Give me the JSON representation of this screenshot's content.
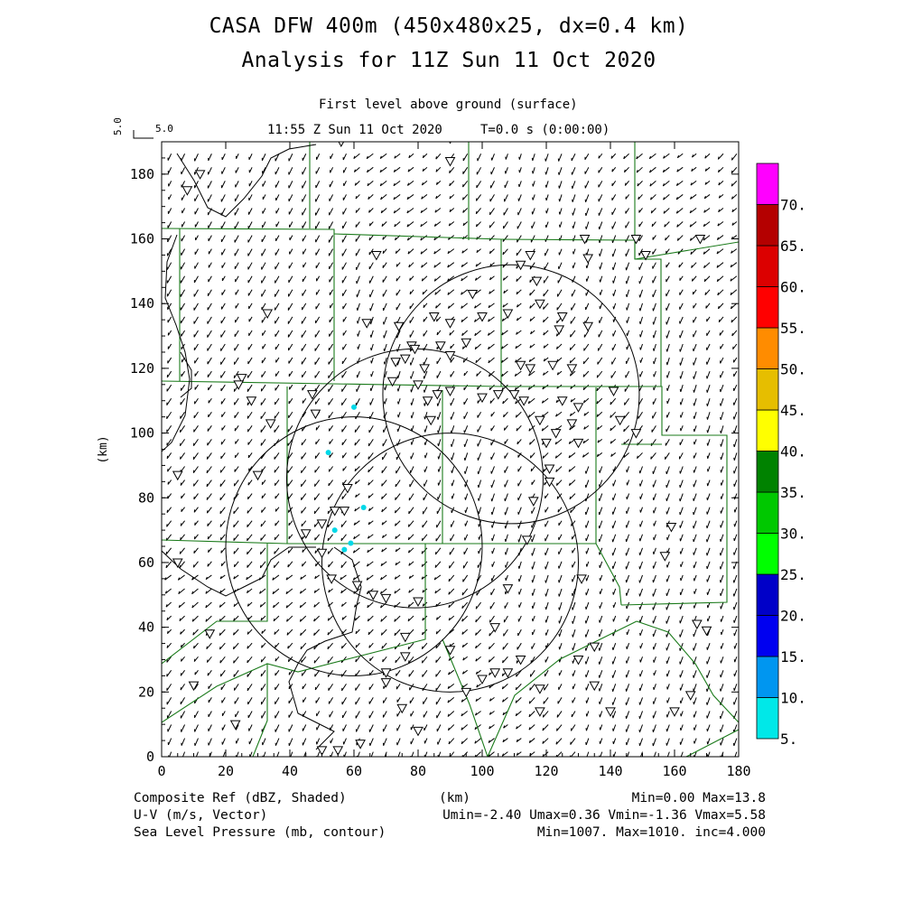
{
  "header": {
    "title_line1": "CASA DFW 400m (450x480x25, dx=0.4 km)",
    "title_line2": "Analysis for 11Z Sun 11 Oct 2020",
    "level": "First level above ground (surface)",
    "time": "11:55 Z Sun 11 Oct 2020     T=0.0 s (0:00:00)",
    "vector_scale_label": "5.0",
    "vector_scale_vertical": "5.0"
  },
  "axes": {
    "x_label": "(km)",
    "y_label": "(km)",
    "x_ticks": [
      "0",
      "20",
      "40",
      "60",
      "80",
      "100",
      "120",
      "140",
      "160",
      "180"
    ],
    "y_ticks": [
      "0",
      "20",
      "40",
      "60",
      "80",
      "100",
      "120",
      "140",
      "160",
      "180"
    ],
    "x_range": [
      0,
      180
    ],
    "y_range": [
      0,
      190
    ]
  },
  "colorbar": {
    "labels": [
      "5.",
      "10.",
      "15.",
      "20.",
      "25.",
      "30.",
      "35.",
      "40.",
      "45.",
      "50.",
      "55.",
      "60.",
      "65.",
      "70."
    ],
    "colors": [
      "#00e8e8",
      "#0096f0",
      "#0000f0",
      "#0000c8",
      "#00ff00",
      "#00c800",
      "#008200",
      "#ffff00",
      "#e6be00",
      "#ff8c00",
      "#ff0000",
      "#dc0000",
      "#b40000",
      "#ff00ff"
    ]
  },
  "footer": {
    "field1": "Composite Ref (dBZ, Shaded)",
    "field2": "U-V (m/s, Vector)",
    "field3": "Sea Level Pressure (mb, contour)",
    "x_unit": "(km)",
    "stats1": "Min=0.00 Max=13.8",
    "stats2": "Umin=-2.40 Umax=0.36 Vmin=-1.36 Vmax=5.58",
    "stats3": "Min=1007. Max=1010. inc=4.000"
  },
  "map_data": {
    "radar_rings": [
      {
        "cx_km": 79,
        "cy_km": 86,
        "r_km": 40
      },
      {
        "cx_km": 60,
        "cy_km": 65,
        "r_km": 40
      },
      {
        "cx_km": 90,
        "cy_km": 60,
        "r_km": 40
      },
      {
        "cx_km": 109,
        "cy_km": 112,
        "r_km": 40
      }
    ],
    "echo_points_km": [
      [
        60,
        108
      ],
      [
        52,
        94
      ],
      [
        63,
        77
      ],
      [
        54,
        70
      ],
      [
        59,
        66
      ],
      [
        57,
        64
      ]
    ],
    "stations_km": [
      [
        56,
        190
      ],
      [
        90,
        191
      ],
      [
        90,
        184
      ],
      [
        12,
        180
      ],
      [
        8,
        175
      ],
      [
        67,
        155
      ],
      [
        132,
        160
      ],
      [
        133,
        154
      ],
      [
        151,
        155
      ],
      [
        128,
        120
      ],
      [
        122,
        121
      ],
      [
        115,
        155
      ],
      [
        112,
        152
      ],
      [
        117,
        147
      ],
      [
        148,
        160
      ],
      [
        168,
        160
      ],
      [
        33,
        137
      ],
      [
        64,
        134
      ],
      [
        74,
        133
      ],
      [
        97,
        143
      ],
      [
        118,
        140
      ],
      [
        108,
        137
      ],
      [
        100,
        136
      ],
      [
        90,
        134
      ],
      [
        85,
        136
      ],
      [
        125,
        136
      ],
      [
        124,
        132
      ],
      [
        133,
        133
      ],
      [
        78,
        127
      ],
      [
        79,
        126
      ],
      [
        76,
        123
      ],
      [
        82,
        120
      ],
      [
        90,
        124
      ],
      [
        95,
        128
      ],
      [
        87,
        127
      ],
      [
        80,
        115
      ],
      [
        73,
        122
      ],
      [
        72,
        116
      ],
      [
        83,
        110
      ],
      [
        84,
        104
      ],
      [
        86,
        112
      ],
      [
        90,
        113
      ],
      [
        100,
        111
      ],
      [
        105,
        112
      ],
      [
        110,
        112
      ],
      [
        115,
        120
      ],
      [
        112,
        121
      ],
      [
        113,
        110
      ],
      [
        118,
        104
      ],
      [
        125,
        110
      ],
      [
        130,
        108
      ],
      [
        128,
        103
      ],
      [
        123,
        100
      ],
      [
        120,
        97
      ],
      [
        130,
        97
      ],
      [
        141,
        113
      ],
      [
        143,
        104
      ],
      [
        148,
        100
      ],
      [
        121,
        89
      ],
      [
        121,
        85
      ],
      [
        116,
        79
      ],
      [
        114,
        67
      ],
      [
        108,
        52
      ],
      [
        104,
        40
      ],
      [
        112,
        30
      ],
      [
        108,
        26
      ],
      [
        104,
        26
      ],
      [
        118,
        21
      ],
      [
        118,
        14
      ],
      [
        130,
        30
      ],
      [
        135,
        22
      ],
      [
        140,
        14
      ],
      [
        160,
        14
      ],
      [
        165,
        19
      ],
      [
        170,
        39
      ],
      [
        167,
        41
      ],
      [
        159,
        71
      ],
      [
        157,
        62
      ],
      [
        135,
        34
      ],
      [
        131,
        55
      ],
      [
        47,
        112
      ],
      [
        48,
        106
      ],
      [
        34,
        103
      ],
      [
        28,
        110
      ],
      [
        25,
        117
      ],
      [
        30,
        87
      ],
      [
        58,
        83
      ],
      [
        57,
        76
      ],
      [
        54,
        76
      ],
      [
        50,
        72
      ],
      [
        45,
        69
      ],
      [
        50,
        63
      ],
      [
        53,
        55
      ],
      [
        61,
        53
      ],
      [
        70,
        49
      ],
      [
        66,
        50
      ],
      [
        80,
        48
      ],
      [
        76,
        37
      ],
      [
        76,
        31
      ],
      [
        70,
        26
      ],
      [
        70,
        23
      ],
      [
        75,
        15
      ],
      [
        80,
        8
      ],
      [
        62,
        4
      ],
      [
        55,
        2
      ],
      [
        50,
        2
      ],
      [
        23,
        10
      ],
      [
        10,
        22
      ],
      [
        15,
        38
      ],
      [
        5,
        60
      ],
      [
        5,
        87
      ],
      [
        24,
        115
      ],
      [
        90,
        33
      ],
      [
        95,
        20
      ],
      [
        100,
        24
      ]
    ]
  }
}
